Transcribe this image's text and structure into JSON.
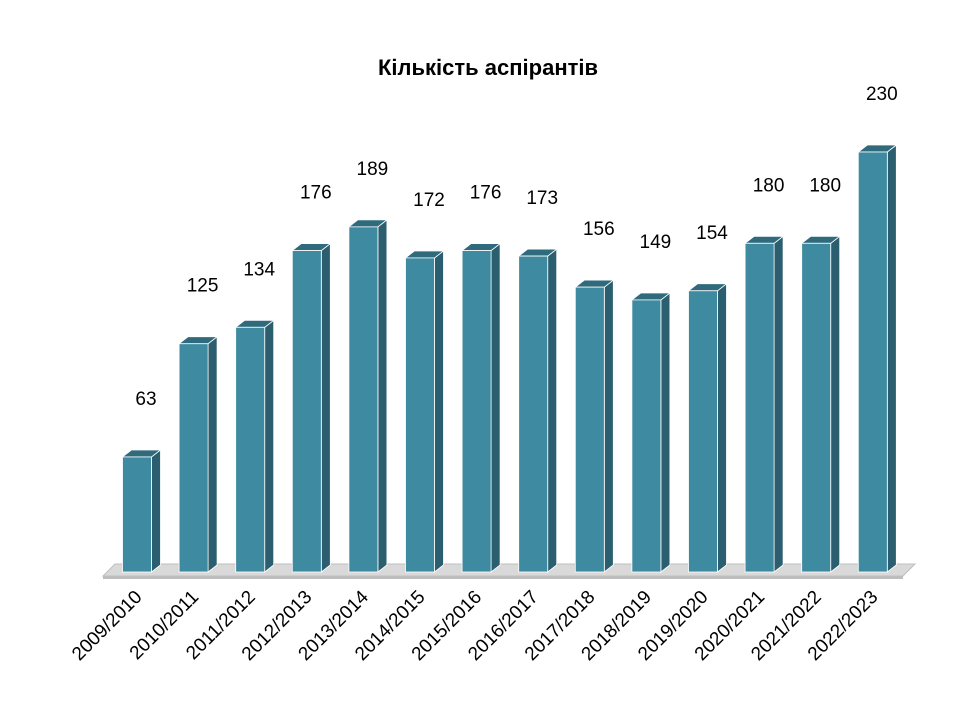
{
  "chart_data": {
    "type": "bar",
    "title": "Кількість аспірантів",
    "xlabel": "",
    "ylabel": "",
    "categories": [
      "2009/2010",
      "2010/2011",
      "2011/2012",
      "2012/2013",
      "2013/2014",
      "2014/2015",
      "2015/2016",
      "2016/2017",
      "2017/2018",
      "2018/2019",
      "2019/2020",
      "2020/2021",
      "2021/2022",
      "2022/2023"
    ],
    "values": [
      63,
      125,
      134,
      176,
      189,
      172,
      176,
      173,
      156,
      149,
      154,
      180,
      180,
      230
    ],
    "ylim": [
      0,
      230
    ],
    "grid": false,
    "legend": "none",
    "bar_style": "3d",
    "colors": {
      "bar_front": "#3e8aa0",
      "bar_side": "#2b5e6e",
      "bar_top": "#2f6b7c",
      "floor": "#d9d9d9"
    }
  }
}
